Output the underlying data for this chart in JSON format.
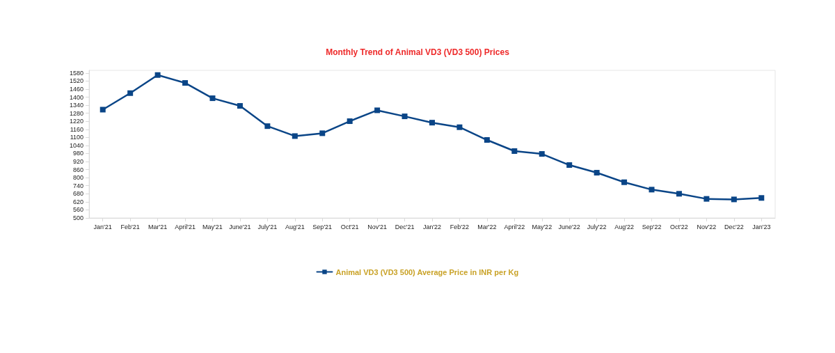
{
  "chart_data": {
    "type": "line",
    "title": "Monthly Trend of Animal VD3 (VD3 500) Prices",
    "categories": [
      "Jan'21",
      "Feb'21",
      "Mar'21",
      "April'21",
      "May'21",
      "June'21",
      "July'21",
      "Aug'21",
      "Sep'21",
      "Oct'21",
      "Nov'21",
      "Dec'21",
      "Jan'22",
      "Feb'22",
      "Mar'22",
      "April'22",
      "May'22",
      "June'22",
      "July'22",
      "Aug'22",
      "Sep'22",
      "Oct'22",
      "Nov'22",
      "Dec'22",
      "Jan'23"
    ],
    "series": [
      {
        "name": "Animal VD3 (VD3 500) Average Price in INR per Kg",
        "color": "#0a4587",
        "values": [
          1307,
          1430,
          1565,
          1506,
          1392,
          1335,
          1184,
          1110,
          1131,
          1221,
          1302,
          1257,
          1210,
          1176,
          1081,
          998,
          977,
          894,
          837,
          766,
          711,
          680,
          642,
          638,
          649
        ]
      }
    ],
    "ylim": [
      500,
      1600
    ],
    "yticks": [
      500,
      560,
      620,
      680,
      740,
      800,
      860,
      920,
      980,
      1040,
      1100,
      1160,
      1220,
      1280,
      1340,
      1400,
      1460,
      1520,
      1580
    ],
    "grid": false,
    "legend": "bottom",
    "marker": "square",
    "line_style": "solid"
  }
}
